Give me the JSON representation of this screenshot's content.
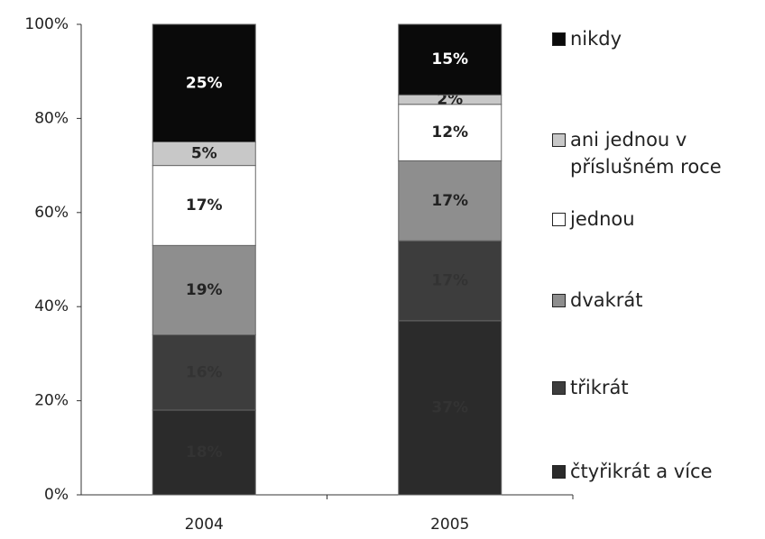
{
  "chart_data": {
    "type": "stacked_bar",
    "categories": [
      "2004",
      "2005"
    ],
    "series": [
      {
        "name": "čtyřikrát a více",
        "color": "#2b2b2b",
        "values": [
          18,
          37
        ],
        "value_labels": [
          "18%",
          "37%"
        ]
      },
      {
        "name": "třikrát",
        "color": "#3d3d3d",
        "values": [
          16,
          17
        ],
        "value_labels": [
          "16%",
          "17%"
        ]
      },
      {
        "name": "dvakrát",
        "color": "#8e8e8e",
        "values": [
          19,
          17
        ],
        "value_labels": [
          "19%",
          "17%"
        ]
      },
      {
        "name": "jednou",
        "color": "#ffffff",
        "values": [
          17,
          12
        ],
        "value_labels": [
          "17%",
          "12%"
        ]
      },
      {
        "name": "ani jednou v příslušném roce",
        "color": "#c8c8c8",
        "values": [
          5,
          2
        ],
        "value_labels": [
          "5%",
          "2%"
        ]
      },
      {
        "name": "nikdy",
        "color": "#0a0a0a",
        "values": [
          25,
          15
        ],
        "value_labels": [
          "25%",
          "15%"
        ]
      }
    ],
    "ylim": [
      0,
      100
    ],
    "yticks": [
      {
        "value": 0,
        "label": "0%"
      },
      {
        "value": 20,
        "label": "20%"
      },
      {
        "value": 40,
        "label": "40%"
      },
      {
        "value": 60,
        "label": "60%"
      },
      {
        "value": 80,
        "label": "80%"
      },
      {
        "value": 100,
        "label": "100%"
      }
    ]
  }
}
